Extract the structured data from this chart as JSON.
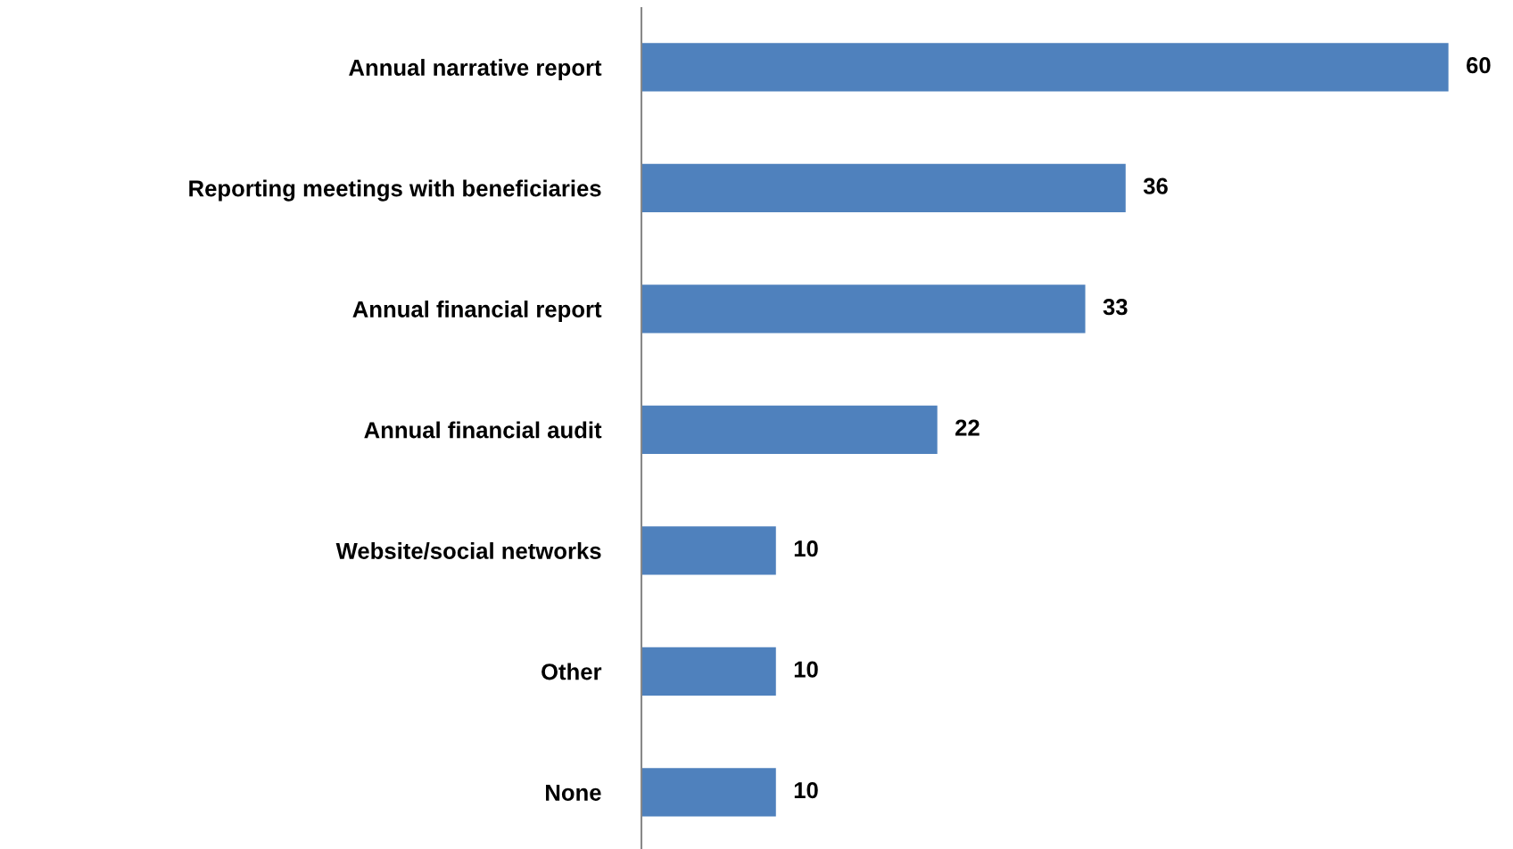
{
  "chart_data": {
    "type": "bar",
    "orientation": "horizontal",
    "categories": [
      "Annual narrative report",
      "Reporting meetings with beneficiaries",
      "Annual financial report",
      "Annual financial audit",
      "Website/social networks",
      "Other",
      "None"
    ],
    "values": [
      60,
      36,
      33,
      22,
      10,
      10,
      10
    ],
    "color": "#4f81bd",
    "data_labels": true,
    "grid": false,
    "legend": false
  }
}
